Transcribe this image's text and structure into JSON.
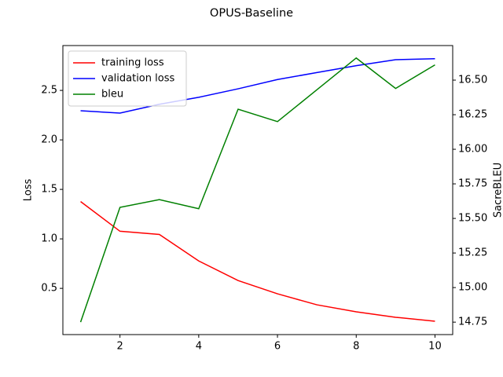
{
  "chart_data": {
    "type": "line",
    "title": "OPUS-Baseline",
    "y_label": "Loss",
    "y2_label": "SacreBLEU",
    "x": [
      1,
      2,
      3,
      4,
      5,
      6,
      7,
      8,
      9,
      10
    ],
    "xlim": [
      0.55,
      10.45
    ],
    "xticks": [
      2,
      4,
      6,
      8,
      10
    ],
    "ylim": [
      0.033,
      2.953
    ],
    "yticks": [
      0.5,
      {
        "value": 1.0,
        "label": "1.0"
      },
      1.5,
      {
        "value": 2.0,
        "label": "2.0"
      },
      2.5
    ],
    "y2lim": [
      14.66,
      16.75
    ],
    "y2ticks": [
      14.75,
      {
        "value": 15.0,
        "label": "15.00"
      },
      15.25,
      {
        "value": 15.5,
        "label": "15.50"
      },
      15.75,
      {
        "value": 16.0,
        "label": "16.00"
      },
      16.25,
      {
        "value": 16.5,
        "label": "16.50"
      }
    ],
    "legend": "upper left",
    "series": [
      {
        "name": "training loss",
        "color": "#ff0000",
        "values": [
          1.377,
          1.077,
          1.045,
          0.777,
          0.579,
          0.445,
          0.334,
          0.263,
          0.208,
          0.168
        ]
      },
      {
        "name": "validation loss",
        "color": "#0000ff",
        "values": [
          2.294,
          2.271,
          2.36,
          2.43,
          2.516,
          2.61,
          2.68,
          2.75,
          2.81,
          2.82
        ]
      },
      {
        "name": "bleu",
        "color": "#008000",
        "axis": "y2",
        "values": [
          14.75,
          15.58,
          15.636,
          15.57,
          16.29,
          16.2,
          16.43,
          16.66,
          16.44,
          16.61
        ]
      }
    ]
  }
}
